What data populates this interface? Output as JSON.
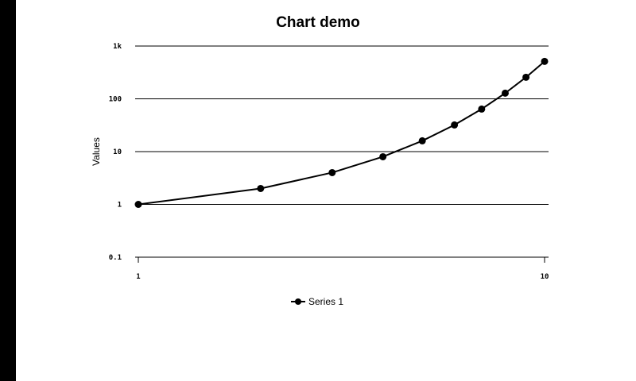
{
  "chart_data": {
    "type": "line",
    "title": "Chart demo",
    "xlabel": "",
    "ylabel": "Values",
    "x_scale": "log",
    "y_scale": "log",
    "xlim": [
      1,
      10
    ],
    "ylim": [
      0.1,
      1000
    ],
    "x_ticks": [
      {
        "value": 1,
        "label": "1"
      },
      {
        "value": 10,
        "label": "10"
      }
    ],
    "y_ticks": [
      {
        "value": 0.1,
        "label": "0.1"
      },
      {
        "value": 1,
        "label": "1"
      },
      {
        "value": 10,
        "label": "10"
      },
      {
        "value": 100,
        "label": "100"
      },
      {
        "value": 1000,
        "label": "1k"
      }
    ],
    "grid": "horizontal",
    "legend_position": "bottom",
    "series": [
      {
        "name": "Series 1",
        "color": "#000000",
        "marker": "circle",
        "x": [
          1,
          2,
          3,
          4,
          5,
          6,
          7,
          8,
          9,
          10
        ],
        "y": [
          1,
          2,
          4,
          8,
          16,
          32,
          64,
          128,
          256,
          512
        ]
      }
    ]
  }
}
